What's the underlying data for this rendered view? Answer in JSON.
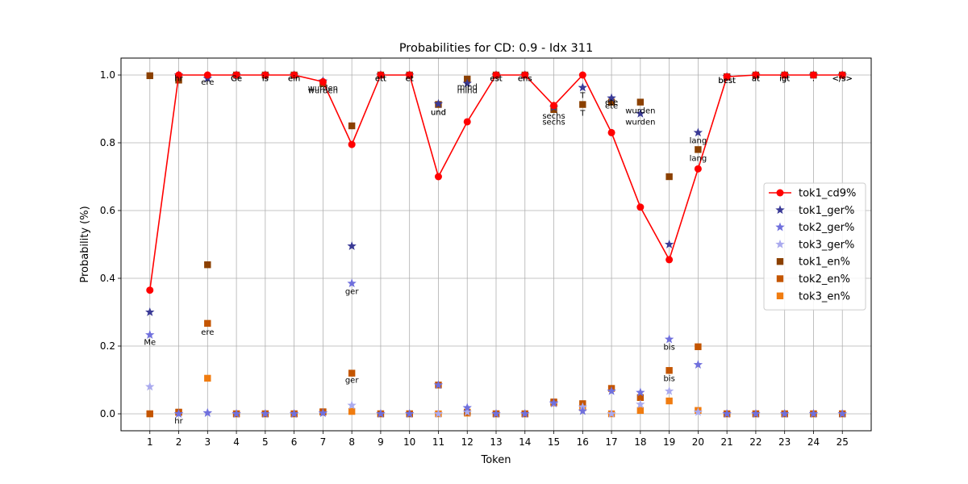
{
  "chart_data": {
    "type": "line",
    "title": "Probabilities for CD: 0.9 - Idx 311",
    "xlabel": "Token",
    "ylabel": "Probability (%)",
    "x": [
      1,
      2,
      3,
      4,
      5,
      6,
      7,
      8,
      9,
      10,
      11,
      12,
      13,
      14,
      15,
      16,
      17,
      18,
      19,
      20,
      21,
      22,
      23,
      24,
      25
    ],
    "xlim": [
      0.0,
      26.0
    ],
    "ylim": [
      -0.05,
      1.05
    ],
    "yticks": [
      "0.0",
      "0.2",
      "0.4",
      "0.6",
      "0.8",
      "1.0"
    ],
    "grid": true,
    "legend_position": "center-right",
    "series": [
      {
        "name": "tok1_cd9%",
        "marker": "circle",
        "line": true,
        "color": "#ff0000",
        "values": [
          0.365,
          1.0,
          1.0,
          1.0,
          1.0,
          1.0,
          0.98,
          0.795,
          1.0,
          1.0,
          0.7,
          0.862,
          1.0,
          1.0,
          0.91,
          1.0,
          0.83,
          0.61,
          0.455,
          0.723,
          0.995,
          1.0,
          1.0,
          1.0,
          1.0
        ]
      },
      {
        "name": "tok1_ger%",
        "marker": "star",
        "line": false,
        "color": "#3a3a96",
        "values": [
          0.3,
          1.0,
          0.99,
          1.0,
          1.0,
          1.0,
          0.982,
          0.495,
          1.0,
          1.0,
          0.915,
          0.975,
          1.0,
          1.0,
          0.905,
          0.963,
          0.932,
          0.886,
          0.5,
          0.83,
          0.995,
          1.0,
          1.0,
          1.0,
          1.0
        ]
      },
      {
        "name": "tok2_ger%",
        "marker": "star",
        "line": false,
        "color": "#7070dd",
        "values": [
          0.233,
          0.0,
          0.003,
          0.0,
          0.0,
          0.0,
          0.002,
          0.385,
          0.0,
          0.0,
          0.085,
          0.018,
          0.0,
          0.0,
          0.032,
          0.008,
          0.067,
          0.063,
          0.22,
          0.145,
          0.0,
          0.0,
          0.0,
          0.0,
          0.0
        ]
      },
      {
        "name": "tok3_ger%",
        "marker": "star",
        "line": false,
        "color": "#aaaaee",
        "values": [
          0.08,
          0.0,
          0.002,
          0.0,
          0.0,
          0.0,
          0.002,
          0.025,
          0.0,
          0.0,
          0.0,
          0.005,
          0.0,
          0.0,
          0.03,
          0.02,
          0.0,
          0.028,
          0.067,
          0.005,
          0.0,
          0.0,
          0.0,
          0.0,
          0.0
        ]
      },
      {
        "name": "tok1_en%",
        "marker": "square",
        "line": false,
        "color": "#8b4000",
        "values": [
          0.998,
          0.985,
          0.44,
          1.0,
          1.0,
          1.0,
          0.975,
          0.85,
          1.0,
          1.0,
          0.913,
          0.988,
          1.0,
          1.0,
          0.898,
          0.913,
          0.92,
          0.92,
          0.7,
          0.78,
          0.995,
          1.0,
          1.0,
          1.0,
          1.0
        ]
      },
      {
        "name": "tok2_en%",
        "marker": "square",
        "line": false,
        "color": "#c45500",
        "values": [
          0.0,
          0.005,
          0.267,
          0.0,
          0.0,
          0.0,
          0.006,
          0.12,
          0.0,
          0.0,
          0.085,
          0.005,
          0.0,
          0.0,
          0.035,
          0.03,
          0.075,
          0.048,
          0.128,
          0.198,
          0.0,
          0.0,
          0.0,
          0.0,
          0.0
        ]
      },
      {
        "name": "tok3_en%",
        "marker": "square",
        "line": false,
        "color": "#f07c10",
        "values": [
          0.0,
          0.004,
          0.105,
          0.0,
          0.0,
          0.0,
          0.005,
          0.007,
          0.0,
          0.0,
          0.0,
          0.002,
          0.0,
          0.0,
          0.032,
          0.018,
          0.0,
          0.01,
          0.038,
          0.01,
          0.0,
          0.0,
          0.0,
          0.0,
          0.0
        ]
      }
    ],
    "annotations": [
      {
        "x": 1,
        "y": 0.212,
        "text": "Me"
      },
      {
        "x": 2,
        "y": 0.99,
        "text": "hr"
      },
      {
        "x": 2,
        "y": -0.02,
        "text": "hr"
      },
      {
        "x": 3,
        "y": 0.98,
        "text": "ere"
      },
      {
        "x": 3,
        "y": 0.242,
        "text": "ere"
      },
      {
        "x": 4,
        "y": 0.99,
        "text": "Ge"
      },
      {
        "x": 4,
        "y": 0.99,
        "text": "Ge"
      },
      {
        "x": 5,
        "y": 0.99,
        "text": "is"
      },
      {
        "x": 5,
        "y": 0.99,
        "text": "is"
      },
      {
        "x": 6,
        "y": 0.99,
        "text": "ein"
      },
      {
        "x": 6,
        "y": 0.99,
        "text": "ein"
      },
      {
        "x": 7,
        "y": 0.962,
        "text": "wurden"
      },
      {
        "x": 7,
        "y": 0.955,
        "text": "wurden"
      },
      {
        "x": 8,
        "y": 0.362,
        "text": "ger"
      },
      {
        "x": 8,
        "y": 0.1,
        "text": "ger"
      },
      {
        "x": 9,
        "y": 0.99,
        "text": "ett"
      },
      {
        "x": 9,
        "y": 0.99,
        "text": "ett"
      },
      {
        "x": 10,
        "y": 0.99,
        "text": "et"
      },
      {
        "x": 10,
        "y": 0.99,
        "text": "et"
      },
      {
        "x": 11,
        "y": 0.89,
        "text": "und"
      },
      {
        "x": 11,
        "y": 0.89,
        "text": "und"
      },
      {
        "x": 12,
        "y": 0.965,
        "text": "mind"
      },
      {
        "x": 12,
        "y": 0.955,
        "text": "mind"
      },
      {
        "x": 13,
        "y": 0.99,
        "text": "est"
      },
      {
        "x": 13,
        "y": 0.99,
        "text": "est"
      },
      {
        "x": 14,
        "y": 0.99,
        "text": "ens"
      },
      {
        "x": 14,
        "y": 0.99,
        "text": "ens"
      },
      {
        "x": 15,
        "y": 0.88,
        "text": "sechs"
      },
      {
        "x": 15,
        "y": 0.862,
        "text": "sechs"
      },
      {
        "x": 16,
        "y": 0.94,
        "text": "T"
      },
      {
        "x": 16,
        "y": 0.888,
        "text": "T"
      },
      {
        "x": 17,
        "y": 0.92,
        "text": "ete"
      },
      {
        "x": 17,
        "y": 0.91,
        "text": "ete"
      },
      {
        "x": 18,
        "y": 0.895,
        "text": "wurden"
      },
      {
        "x": 18,
        "y": 0.862,
        "text": "wurden"
      },
      {
        "x": 19,
        "y": 0.198,
        "text": "bis"
      },
      {
        "x": 19,
        "y": 0.105,
        "text": "bis"
      },
      {
        "x": 20,
        "y": 0.807,
        "text": "lang"
      },
      {
        "x": 20,
        "y": 0.755,
        "text": "lang"
      },
      {
        "x": 21,
        "y": 0.985,
        "text": "best"
      },
      {
        "x": 21,
        "y": 0.985,
        "text": "best"
      },
      {
        "x": 22,
        "y": 0.99,
        "text": "at"
      },
      {
        "x": 22,
        "y": 0.99,
        "text": "at"
      },
      {
        "x": 23,
        "y": 0.99,
        "text": "igt"
      },
      {
        "x": 23,
        "y": 0.99,
        "text": "igt"
      },
      {
        "x": 24,
        "y": 0.99,
        "text": "."
      },
      {
        "x": 24,
        "y": 0.99,
        "text": "."
      },
      {
        "x": 25,
        "y": 0.99,
        "text": "</s>"
      },
      {
        "x": 25,
        "y": 0.99,
        "text": "</s>"
      }
    ]
  }
}
